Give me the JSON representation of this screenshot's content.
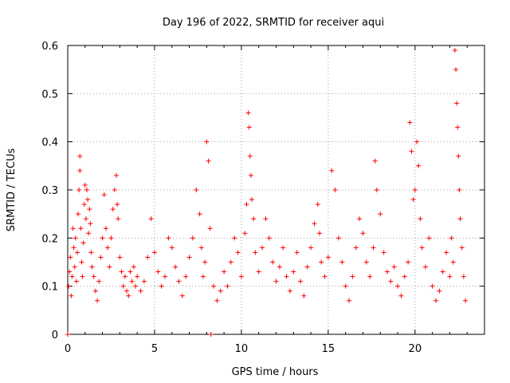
{
  "chart_data": {
    "type": "scatter",
    "title": "Day 196 of 2022, SRMTID for receiver aqui",
    "xlabel": "GPS time / hours",
    "ylabel": "SRMTID / TECUs",
    "xlim": [
      0,
      24
    ],
    "ylim": [
      0,
      0.6
    ],
    "xticks": [
      0,
      5,
      10,
      15,
      20
    ],
    "yticks": [
      0,
      0.1,
      0.2,
      0.3,
      0.4,
      0.5,
      0.6
    ],
    "ytick_labels": [
      "0",
      "0.1",
      "0.2",
      "0.3",
      "0.4",
      "0.5",
      "0.6"
    ],
    "grid": true,
    "marker": "+",
    "series": [
      {
        "name": "SRMTID",
        "color": "#ff0000",
        "x": [
          0.05,
          0.1,
          0.15,
          0.2,
          0.25,
          0.3,
          0.35,
          0.4,
          0.45,
          0.5,
          0.55,
          0.6,
          0.65,
          0.7,
          0.7,
          0.75,
          0.8,
          0.85,
          0.9,
          0.95,
          1.0,
          1.05,
          1.1,
          1.15,
          1.2,
          1.25,
          1.3,
          1.35,
          1.4,
          1.5,
          1.6,
          1.7,
          1.8,
          1.9,
          2.0,
          2.1,
          2.2,
          2.3,
          2.4,
          2.5,
          2.6,
          2.7,
          2.8,
          2.85,
          2.9,
          3.0,
          3.1,
          3.2,
          3.3,
          3.4,
          3.5,
          3.6,
          3.7,
          3.8,
          3.9,
          4.0,
          4.2,
          4.4,
          4.6,
          4.8,
          5.0,
          5.2,
          5.4,
          5.6,
          5.8,
          6.0,
          6.2,
          6.4,
          6.6,
          6.8,
          7.0,
          7.2,
          7.4,
          7.6,
          7.7,
          7.8,
          7.9,
          8.0,
          8.1,
          8.2,
          8.4,
          8.6,
          8.8,
          9.0,
          9.2,
          9.4,
          9.6,
          9.8,
          10.0,
          10.2,
          10.3,
          10.4,
          10.45,
          10.5,
          10.55,
          10.6,
          10.7,
          10.8,
          11.0,
          11.2,
          11.4,
          11.6,
          11.8,
          12.0,
          12.2,
          12.4,
          12.6,
          12.8,
          13.0,
          13.2,
          13.4,
          13.6,
          13.8,
          14.0,
          14.2,
          14.4,
          14.5,
          14.6,
          14.8,
          15.0,
          15.2,
          15.4,
          15.6,
          15.8,
          16.0,
          16.2,
          16.4,
          16.6,
          16.8,
          17.0,
          17.2,
          17.4,
          17.6,
          17.7,
          17.8,
          18.0,
          18.2,
          18.4,
          18.6,
          18.8,
          19.0,
          19.2,
          19.4,
          19.6,
          19.7,
          19.8,
          19.9,
          20.0,
          20.1,
          20.2,
          20.3,
          20.4,
          20.6,
          20.8,
          21.0,
          21.2,
          21.4,
          21.6,
          21.8,
          22.0,
          22.1,
          22.2,
          22.3,
          22.35,
          22.4,
          22.45,
          22.5,
          22.55,
          22.6,
          22.7,
          22.8,
          22.9,
          0.0,
          8.25
        ],
        "y": [
          0.1,
          0.13,
          0.16,
          0.08,
          0.12,
          0.22,
          0.18,
          0.14,
          0.2,
          0.11,
          0.17,
          0.25,
          0.3,
          0.37,
          0.34,
          0.22,
          0.15,
          0.12,
          0.19,
          0.27,
          0.31,
          0.24,
          0.3,
          0.28,
          0.21,
          0.26,
          0.23,
          0.17,
          0.14,
          0.12,
          0.09,
          0.07,
          0.11,
          0.16,
          0.2,
          0.29,
          0.22,
          0.18,
          0.14,
          0.2,
          0.26,
          0.3,
          0.33,
          0.27,
          0.24,
          0.16,
          0.13,
          0.1,
          0.12,
          0.09,
          0.08,
          0.13,
          0.11,
          0.14,
          0.1,
          0.12,
          0.09,
          0.11,
          0.16,
          0.24,
          0.17,
          0.13,
          0.1,
          0.12,
          0.2,
          0.18,
          0.14,
          0.11,
          0.08,
          0.12,
          0.16,
          0.2,
          0.3,
          0.25,
          0.18,
          0.12,
          0.15,
          0.4,
          0.36,
          0.22,
          0.1,
          0.07,
          0.09,
          0.13,
          0.1,
          0.15,
          0.2,
          0.17,
          0.12,
          0.21,
          0.27,
          0.46,
          0.43,
          0.37,
          0.33,
          0.28,
          0.24,
          0.17,
          0.13,
          0.18,
          0.24,
          0.2,
          0.15,
          0.11,
          0.14,
          0.18,
          0.12,
          0.09,
          0.13,
          0.17,
          0.11,
          0.08,
          0.14,
          0.18,
          0.23,
          0.27,
          0.21,
          0.15,
          0.12,
          0.16,
          0.34,
          0.3,
          0.2,
          0.15,
          0.1,
          0.07,
          0.12,
          0.18,
          0.24,
          0.21,
          0.15,
          0.12,
          0.18,
          0.36,
          0.3,
          0.25,
          0.17,
          0.13,
          0.11,
          0.14,
          0.1,
          0.08,
          0.12,
          0.15,
          0.44,
          0.38,
          0.28,
          0.3,
          0.4,
          0.35,
          0.24,
          0.18,
          0.14,
          0.2,
          0.1,
          0.07,
          0.09,
          0.13,
          0.17,
          0.12,
          0.2,
          0.15,
          0.59,
          0.55,
          0.48,
          0.43,
          0.37,
          0.3,
          0.24,
          0.18,
          0.12,
          0.07,
          0.0,
          0.0
        ]
      }
    ]
  }
}
